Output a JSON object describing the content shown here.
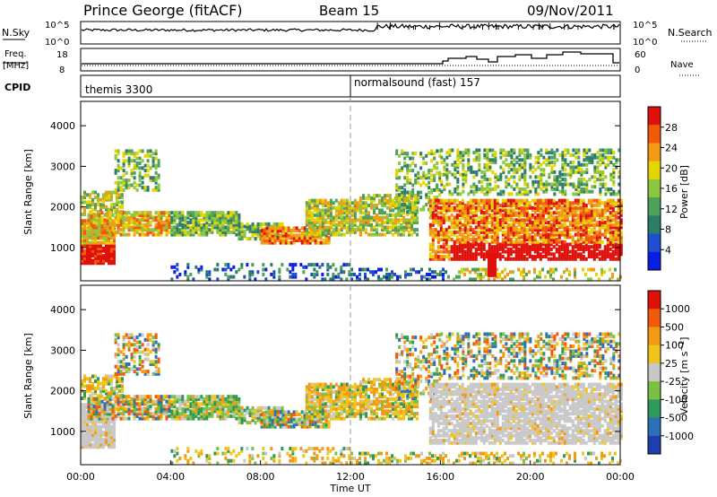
{
  "header": {
    "station": "Prince George (fitACF)",
    "beam": "Beam 15",
    "date": "09/Nov/2011"
  },
  "sky_panel": {
    "label": "N.Sky",
    "left_ticks": [
      "10^5",
      "10^0"
    ],
    "right_label": "N.Search",
    "right_ticks": [
      "10^5",
      "10^0"
    ]
  },
  "freq_panel": {
    "label_line1": "Freq.",
    "label_line2": "[MHz]",
    "left_ticks": [
      "18",
      "8"
    ],
    "right_label": "Nave",
    "right_ticks": [
      "60",
      "0"
    ]
  },
  "cpid_panel": {
    "label": "CPID",
    "modes": [
      {
        "name": "themis 3300",
        "start_hour": 0
      },
      {
        "name": "normalsound (fast) 157",
        "start_hour": 12
      }
    ]
  },
  "chart_data": [
    {
      "type": "heatmap",
      "name": "power",
      "ylabel": "Slant Range [km]",
      "ylim": [
        180,
        4600
      ],
      "yticks": [
        "1000",
        "2000",
        "3000",
        "4000"
      ],
      "colorbar_label": "Power [dB]",
      "colorbar_ticks": [
        "28",
        "24",
        "20",
        "16",
        "12",
        "8",
        "4"
      ],
      "colors": [
        "#0a1ee6",
        "#1f4fd0",
        "#2b7d6a",
        "#4ea05a",
        "#8dc63f",
        "#e6d400",
        "#f39a14",
        "#f05a0a",
        "#e0100a"
      ]
    },
    {
      "type": "heatmap",
      "name": "velocity",
      "ylabel": "Slant Range [km]",
      "ylim": [
        180,
        4600
      ],
      "yticks": [
        "1000",
        "2000",
        "3000",
        "4000"
      ],
      "colorbar_label": "Velocity [m s^-1]",
      "colorbar_ticks": [
        "1000",
        "500",
        "100",
        "25",
        "-25",
        "-100",
        "-500",
        "-1000"
      ],
      "colors": [
        "#1e3fb0",
        "#2d6fb8",
        "#2e9a5a",
        "#7ac143",
        "#c8c8c8",
        "#f0c419",
        "#f39a14",
        "#f05a0a",
        "#e0100a"
      ]
    }
  ],
  "time_axis": {
    "ticks": [
      "00:00",
      "04:00",
      "08:00",
      "12:00",
      "16:00",
      "20:00",
      "00:00"
    ],
    "label": "Time UT"
  }
}
